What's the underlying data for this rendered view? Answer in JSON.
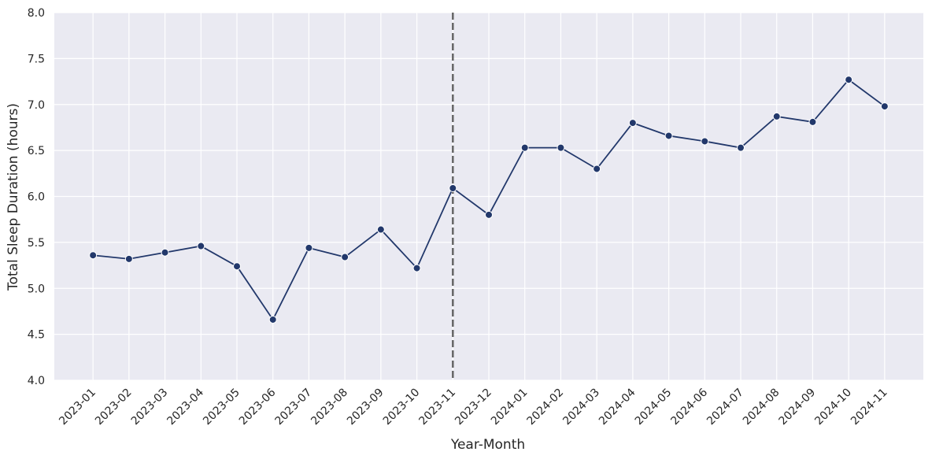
{
  "chart_data": {
    "type": "line",
    "xlabel": "Year-Month",
    "ylabel": "Total Sleep Duration (hours)",
    "categories": [
      "2023-01",
      "2023-02",
      "2023-03",
      "2023-04",
      "2023-05",
      "2023-06",
      "2023-07",
      "2023-08",
      "2023-09",
      "2023-10",
      "2023-11",
      "2023-12",
      "2024-01",
      "2024-02",
      "2024-03",
      "2024-04",
      "2024-05",
      "2024-06",
      "2024-07",
      "2024-08",
      "2024-09",
      "2024-10",
      "2024-11"
    ],
    "values": [
      5.36,
      5.32,
      5.39,
      5.46,
      5.24,
      4.66,
      5.44,
      5.34,
      5.64,
      5.22,
      6.09,
      5.8,
      6.53,
      6.53,
      6.3,
      6.8,
      6.66,
      6.6,
      6.53,
      6.87,
      6.81,
      7.27,
      6.98
    ],
    "color": "#22386b",
    "vline": "2023-11",
    "vline_color": "#666666",
    "ylim": [
      4,
      8
    ],
    "yticks": [
      {
        "value": 4,
        "label": "4.0"
      },
      {
        "value": 4.5,
        "label": "4.5"
      },
      {
        "value": 5,
        "label": "5.0"
      },
      {
        "value": 5.5,
        "label": "5.5"
      },
      {
        "value": 6,
        "label": "6.0"
      },
      {
        "value": 6.5,
        "label": "6.5"
      },
      {
        "value": 7,
        "label": "7.0"
      },
      {
        "value": 7.5,
        "label": "7.5"
      },
      {
        "value": 8,
        "label": "8.0"
      }
    ],
    "grid": true
  }
}
